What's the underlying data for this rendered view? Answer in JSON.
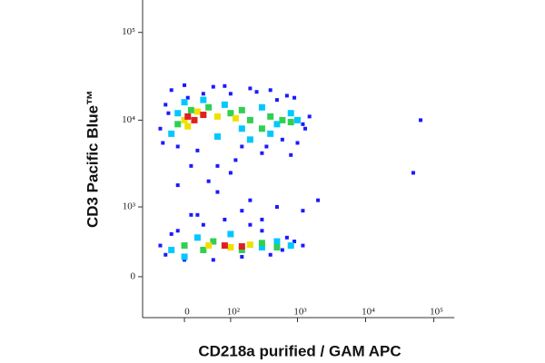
{
  "chart_data": {
    "type": "scatter",
    "x_label": "CD218a purified / GAM APC",
    "y_label": "CD3 Pacific Blue™",
    "xscale": "logicle",
    "yscale": "logicle",
    "xlim": [
      -85,
      200000
    ],
    "ylim": [
      -425,
      234000
    ],
    "xticks": [
      0,
      {
        "value": 100,
        "label": "10²"
      },
      {
        "value": 1000,
        "label": "10³"
      },
      {
        "value": 10000,
        "label": "10⁴"
      },
      {
        "value": 100000,
        "label": "10⁵"
      }
    ],
    "yticks": [
      0,
      {
        "value": 1000,
        "label": "10³"
      },
      {
        "value": 10000,
        "label": "10⁴"
      },
      {
        "value": 100000,
        "label": "10⁵"
      }
    ],
    "series": [
      {
        "color": "#1a1aff",
        "x": [
          -40,
          -30,
          -20,
          -10,
          0,
          20,
          50,
          100,
          150,
          250,
          400,
          600,
          900,
          1200,
          1500,
          800,
          300,
          120,
          60,
          -25,
          5,
          700,
          200,
          1000,
          30,
          500,
          -35,
          350,
          80,
          1300,
          10,
          40,
          60,
          100,
          20,
          200,
          -10,
          150,
          500,
          300,
          1200,
          2000,
          -40,
          -30,
          -20,
          0,
          30,
          80,
          150,
          300,
          600,
          900,
          1200,
          50,
          10,
          200,
          400,
          -10,
          700,
          64000,
          50000
        ],
        "y": [
          8000,
          15000,
          22000,
          5000,
          25000,
          4500,
          24000,
          20000,
          5000,
          21000,
          22000,
          6000,
          18000,
          9000,
          11000,
          4000,
          4200,
          3500,
          3000,
          12000,
          18000,
          19000,
          23000,
          5500,
          20000,
          17000,
          5500,
          5000,
          24500,
          8000,
          3000,
          2000,
          1500,
          2500,
          800,
          1200,
          1800,
          900,
          1000,
          700,
          900,
          1200,
          300,
          200,
          450,
          150,
          600,
          700,
          180,
          500,
          250,
          350,
          300,
          150,
          800,
          600,
          200,
          500,
          400,
          10000,
          2500
        ]
      },
      {
        "color": "#00c8ff",
        "x": [
          -20,
          0,
          30,
          80,
          150,
          300,
          500,
          800,
          1000,
          400,
          200,
          -10,
          60,
          -20,
          20,
          100,
          300,
          500,
          800,
          0
        ],
        "y": [
          7000,
          16000,
          17000,
          15000,
          8000,
          14000,
          9000,
          12000,
          10000,
          7000,
          6000,
          12000,
          6500,
          250,
          400,
          450,
          280,
          350,
          300,
          180
        ]
      },
      {
        "color": "#30d050",
        "x": [
          -10,
          10,
          40,
          100,
          200,
          400,
          600,
          800,
          300,
          150,
          0,
          50,
          150,
          300,
          500,
          30
        ],
        "y": [
          9000,
          13000,
          14000,
          12000,
          10000,
          11000,
          10000,
          9500,
          8000,
          13000,
          300,
          350,
          250,
          330,
          280,
          250
        ]
      },
      {
        "color": "#f0e000",
        "x": [
          0,
          20,
          60,
          120,
          5,
          40,
          100,
          200
        ],
        "y": [
          10000,
          12500,
          11000,
          10500,
          8500,
          300,
          280,
          310
        ]
      },
      {
        "color": "#e02020",
        "x": [
          5,
          15,
          30,
          80,
          150
        ],
        "y": [
          11000,
          10000,
          11500,
          300,
          290
        ]
      }
    ]
  }
}
